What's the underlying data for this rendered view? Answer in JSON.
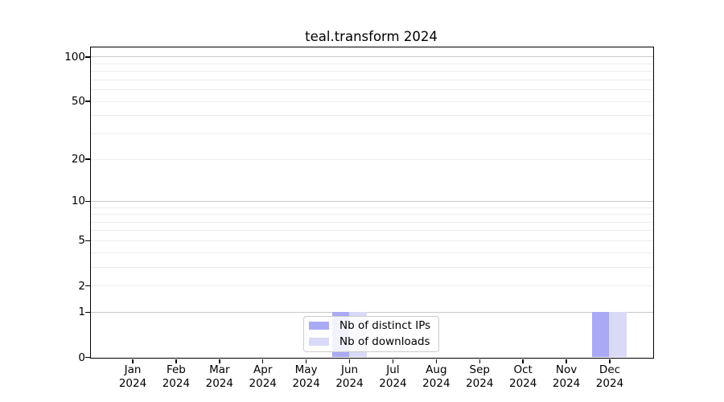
{
  "title": "teal.transform 2024",
  "colors": {
    "distinct_ips": "#a9a9f6",
    "downloads": "#d9d9f8",
    "grid_major": "#c9c9c9",
    "grid_minor": "#ededed",
    "axis": "#000000",
    "legend_border": "#cccccc",
    "background": "#ffffff"
  },
  "legend": {
    "items": [
      {
        "label": "Nb of distinct IPs",
        "color_key": "distinct_ips"
      },
      {
        "label": "Nb of downloads",
        "color_key": "downloads"
      }
    ]
  },
  "chart_data": {
    "type": "bar",
    "title": "teal.transform 2024",
    "categories": [
      "Jan 2024",
      "Feb 2024",
      "Mar 2024",
      "Apr 2024",
      "May 2024",
      "Jun 2024",
      "Jul 2024",
      "Aug 2024",
      "Sep 2024",
      "Oct 2024",
      "Nov 2024",
      "Dec 2024"
    ],
    "series": [
      {
        "name": "Nb of distinct IPs",
        "color_key": "distinct_ips",
        "values": [
          0,
          0,
          0,
          0,
          0,
          1,
          0,
          0,
          0,
          0,
          0,
          1
        ]
      },
      {
        "name": "Nb of downloads",
        "color_key": "downloads",
        "values": [
          0,
          0,
          0,
          0,
          0,
          1,
          0,
          0,
          0,
          0,
          0,
          1
        ]
      }
    ],
    "xlabel": "",
    "ylabel": "",
    "yscale": "log1p",
    "ylim": [
      0,
      116
    ],
    "yticks": [
      0,
      1,
      2,
      5,
      10,
      20,
      50,
      100
    ],
    "grid": {
      "major": [
        1,
        10,
        100
      ],
      "minor": [
        2,
        3,
        4,
        5,
        6,
        7,
        8,
        9,
        20,
        30,
        40,
        50,
        60,
        70,
        80,
        90
      ]
    },
    "legend_position": "lower center",
    "grid_on": true
  }
}
